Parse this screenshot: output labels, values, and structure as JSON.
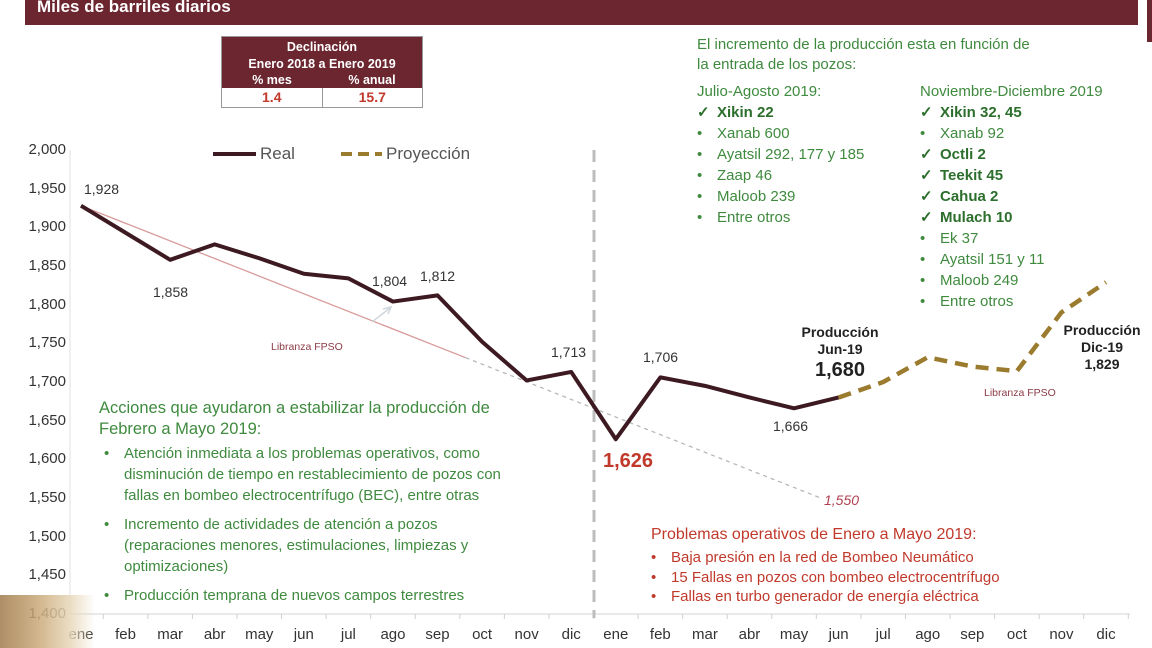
{
  "header": {
    "title": "Miles de barriles diarios"
  },
  "declination_table": {
    "title_line1": "Declinación",
    "title_line2": "Enero 2018 a Enero 2019",
    "col_month": "% mes",
    "col_annual": "% anual",
    "val_month": "1.4",
    "val_annual": "15.7"
  },
  "legend": {
    "real": "Real",
    "projection": "Proyección"
  },
  "colors": {
    "header": "#6b2630",
    "real_line": "#3d1a22",
    "projection_line": "#9b7b2e",
    "trend_line": "#d9a0a0",
    "green_text": "#3f8a3f",
    "red_text": "#c0392b"
  },
  "right_note": {
    "intro_line1": "El incremento de la producción esta en función de",
    "intro_line2": "la entrada de los pozos:",
    "col1_title": "Julio-Agosto 2019:",
    "col1_items": [
      {
        "mark": "✓",
        "text": "Xikin 22",
        "bold": true
      },
      {
        "mark": "•",
        "text": "Xanab 600",
        "bold": false
      },
      {
        "mark": "•",
        "text": "Ayatsil 292, 177 y 185",
        "bold": false
      },
      {
        "mark": "•",
        "text": "Zaap 46",
        "bold": false
      },
      {
        "mark": "•",
        "text": "Maloob 239",
        "bold": false
      },
      {
        "mark": "•",
        "text": "Entre otros",
        "bold": false
      }
    ],
    "col2_title": "Noviembre-Diciembre 2019",
    "col2_items": [
      {
        "mark": "✓",
        "text": "Xikin 32, 45",
        "bold": true
      },
      {
        "mark": "•",
        "text": "Xanab 92",
        "bold": false
      },
      {
        "mark": "✓",
        "text": "Octli 2",
        "bold": true
      },
      {
        "mark": "✓",
        "text": "Teekit 45",
        "bold": true
      },
      {
        "mark": "✓",
        "text": "Cahua 2",
        "bold": true
      },
      {
        "mark": "✓",
        "text": "Mulach 10",
        "bold": true
      },
      {
        "mark": "•",
        "text": "Ek 37",
        "bold": false
      },
      {
        "mark": "•",
        "text": "Ayatsil 151 y 11",
        "bold": false
      },
      {
        "mark": "•",
        "text": "Maloob 249",
        "bold": false
      },
      {
        "mark": "•",
        "text": "Entre otros",
        "bold": false
      }
    ]
  },
  "actions_note": {
    "title_line1": "Acciones que ayudaron a estabilizar la producción de",
    "title_line2": "Febrero a Mayo 2019:",
    "items": [
      [
        "Atención inmediata a los problemas operativos, como",
        "disminución de tiempo en restablecimiento de pozos con",
        "fallas en bombeo electrocentrífugo (BEC), entre otras"
      ],
      [
        "Incremento de actividades de atención a pozos",
        "(reparaciones menores, estimulaciones, limpiezas y",
        "optimizaciones)"
      ],
      [
        "Producción temprana de nuevos campos terrestres"
      ]
    ]
  },
  "problems_note": {
    "title": "Problemas operativos de Enero a Mayo 2019:",
    "items": [
      "Baja presión en la red de Bombeo Neumático",
      "15 Fallas en pozos con bombeo electrocentrífugo",
      "Fallas en turbo generador de energía eléctrica"
    ]
  },
  "annotations": {
    "libranza_1": "Libranza FPSO",
    "libranza_2": "Libranza FPSO",
    "prod_jun_l1": "Producción",
    "prod_jun_l2": "Jun-19",
    "prod_jun_val": "1,680",
    "prod_dic_l1": "Producción",
    "prod_dic_l2": "Dic-19",
    "prod_dic_val": "1,829",
    "trend_end": "1,550",
    "low_point": "1,626"
  },
  "chart_data": {
    "type": "line",
    "title": "Miles de barriles diarios",
    "xlabel": "",
    "ylabel": "Miles de barriles diarios",
    "ylim": [
      1400,
      2000
    ],
    "yticks": [
      "2,000",
      "1,950",
      "1,900",
      "1,850",
      "1,800",
      "1,750",
      "1,700",
      "1,650",
      "1,600",
      "1,550",
      "1,500",
      "1,450",
      "1,400"
    ],
    "categories": [
      "ene",
      "feb",
      "mar",
      "abr",
      "may",
      "jun",
      "jul",
      "ago",
      "sep",
      "oct",
      "nov",
      "dic",
      "ene",
      "feb",
      "mar",
      "abr",
      "may",
      "jun",
      "jul",
      "ago",
      "sep",
      "oct",
      "nov",
      "dic"
    ],
    "series": [
      {
        "name": "Real",
        "values": [
          1928,
          1893,
          1858,
          1878,
          1860,
          1840,
          1834,
          1804,
          1812,
          1752,
          1702,
          1713,
          1626,
          1706,
          1695,
          1680,
          1666,
          1680,
          null,
          null,
          null,
          null,
          null,
          null
        ]
      },
      {
        "name": "Proyección",
        "values": [
          null,
          null,
          null,
          null,
          null,
          null,
          null,
          null,
          null,
          null,
          null,
          null,
          null,
          null,
          null,
          null,
          null,
          1680,
          1700,
          1732,
          1720,
          1714,
          1790,
          1829
        ]
      },
      {
        "name": "Tendencia de declinación",
        "values_endpoints": {
          "start": [
            "ene 2018",
            1928
          ],
          "end": [
            "jun 2019",
            1550
          ]
        }
      }
    ],
    "data_labels": [
      {
        "x": "ene 2018",
        "value": "1,928"
      },
      {
        "x": "mar 2018",
        "value": "1,858"
      },
      {
        "x": "ago 2018",
        "value": "1,804"
      },
      {
        "x": "sep 2018",
        "value": "1,812"
      },
      {
        "x": "dic 2018",
        "value": "1,713"
      },
      {
        "x": "ene 2019",
        "value": "1,626"
      },
      {
        "x": "feb 2019",
        "value": "1,706"
      },
      {
        "x": "may 2019",
        "value": "1,666"
      },
      {
        "x": "jun 2019",
        "value": "1,680"
      },
      {
        "x": "dic 2019",
        "value": "1,829"
      }
    ],
    "legend_position": "top",
    "grid": false
  }
}
